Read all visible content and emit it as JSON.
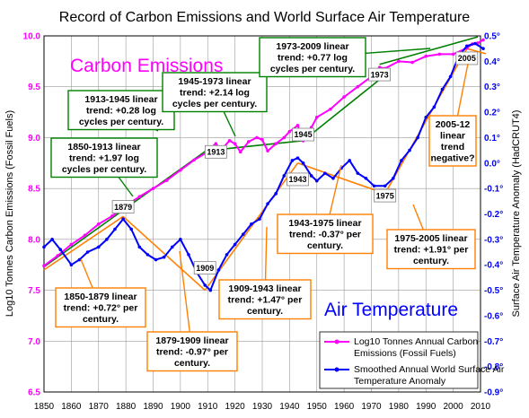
{
  "chart_data": {
    "type": "line",
    "title": "Record of Carbon Emissions and World Surface Air Temperature",
    "xlabel": "",
    "ylabel_left": "Log10 Tonnes Carbon Emissions (Fossil Fuels)",
    "ylabel_right": "Surface Air Temperature Anomaly (HadCRUT4)",
    "xlim": [
      1850,
      2010
    ],
    "ylim_left": [
      6.5,
      10.0
    ],
    "ylim_right": [
      -0.9,
      0.5
    ],
    "x_ticks": [
      "1850",
      "1860",
      "1870",
      "1880",
      "1890",
      "1900",
      "1910",
      "1920",
      "1930",
      "1940",
      "1950",
      "1960",
      "1970",
      "1980",
      "1990",
      "2000",
      "2010"
    ],
    "y_left_ticks": [
      "6.5",
      "7.0",
      "7.5",
      "8.0",
      "8.5",
      "9.0",
      "9.5",
      "10.0"
    ],
    "y_right_ticks": [
      "0.5°",
      "0.4°",
      "0.3°",
      "0.2°",
      "0.1°",
      "0.0°",
      "-0.1°",
      "-0.2°",
      "-0.3°",
      "-0.4°",
      "-0.5°",
      "-0.6°",
      "-0.7°",
      "-0.8°",
      "-0.9°"
    ],
    "grid": true,
    "series": [
      {
        "name": "Log10 Tonnes Annual Carbon Emissions (Fossil Fuels)",
        "axis": "left",
        "color": "#ff00ff",
        "x": [
          1850,
          1855,
          1860,
          1865,
          1870,
          1875,
          1880,
          1885,
          1890,
          1895,
          1900,
          1905,
          1910,
          1913,
          1915,
          1918,
          1920,
          1922,
          1925,
          1928,
          1930,
          1932,
          1935,
          1938,
          1940,
          1943,
          1945,
          1946,
          1948,
          1950,
          1955,
          1960,
          1965,
          1970,
          1973,
          1975,
          1980,
          1985,
          1990,
          1995,
          2000,
          2005,
          2007,
          2009,
          2011
        ],
        "y": [
          7.74,
          7.84,
          7.95,
          8.04,
          8.15,
          8.23,
          8.33,
          8.42,
          8.5,
          8.58,
          8.68,
          8.78,
          8.86,
          8.94,
          8.88,
          8.97,
          8.94,
          8.86,
          8.96,
          9.0,
          8.98,
          8.87,
          8.94,
          9.0,
          9.06,
          9.12,
          8.97,
          9.02,
          9.1,
          9.2,
          9.28,
          9.4,
          9.5,
          9.6,
          9.69,
          9.68,
          9.75,
          9.74,
          9.8,
          9.82,
          9.82,
          9.88,
          9.92,
          9.93,
          9.96
        ]
      },
      {
        "name": "Smoothed Annual World Surface Air Temperature Anomaly",
        "axis": "right",
        "color": "#0000ff",
        "x": [
          1850,
          1853,
          1856,
          1860,
          1863,
          1866,
          1870,
          1873,
          1876,
          1879,
          1882,
          1885,
          1888,
          1891,
          1894,
          1897,
          1900,
          1903,
          1906,
          1909,
          1911,
          1914,
          1917,
          1920,
          1923,
          1926,
          1929,
          1932,
          1935,
          1938,
          1941,
          1943,
          1945,
          1948,
          1950,
          1953,
          1956,
          1959,
          1962,
          1965,
          1968,
          1971,
          1975,
          1978,
          1981,
          1984,
          1987,
          1990,
          1993,
          1996,
          1999,
          2002,
          2005,
          2008,
          2011
        ],
        "y": [
          -0.33,
          -0.3,
          -0.34,
          -0.4,
          -0.38,
          -0.35,
          -0.33,
          -0.3,
          -0.26,
          -0.22,
          -0.26,
          -0.33,
          -0.36,
          -0.38,
          -0.37,
          -0.33,
          -0.3,
          -0.36,
          -0.43,
          -0.48,
          -0.5,
          -0.42,
          -0.36,
          -0.32,
          -0.28,
          -0.24,
          -0.22,
          -0.16,
          -0.12,
          -0.05,
          0.01,
          0.02,
          0.0,
          -0.05,
          -0.07,
          -0.04,
          -0.06,
          -0.02,
          0.01,
          -0.04,
          -0.06,
          -0.09,
          -0.09,
          -0.06,
          0.01,
          0.05,
          0.1,
          0.18,
          0.22,
          0.29,
          0.34,
          0.42,
          0.46,
          0.47,
          0.45
        ]
      }
    ],
    "series_labels": {
      "carbon": "Carbon Emissions",
      "temperature": "Air Temperature"
    },
    "legend": {
      "placement": "bottom-right",
      "items": [
        {
          "label_line1": "Log10 Tonnes Annual Carbon",
          "label_line2": "Emissions (Fossil Fuels)",
          "color": "#ff00ff"
        },
        {
          "label_line1": "Smoothed Annual World Surface Air",
          "label_line2": "Temperature Anomaly",
          "color": "#0000ff"
        }
      ]
    },
    "year_markers": [
      {
        "label": "1879",
        "x": 1879,
        "y": 8.32,
        "axis": "left"
      },
      {
        "label": "1909",
        "x": 1909,
        "y": 7.72,
        "axis": "left"
      },
      {
        "label": "1913",
        "x": 1913,
        "y": 8.86,
        "axis": "left"
      },
      {
        "label": "1943",
        "x": 1943,
        "y": 8.59,
        "axis": "left"
      },
      {
        "label": "1945",
        "x": 1945,
        "y": 9.03,
        "axis": "left"
      },
      {
        "label": "1973",
        "x": 1973,
        "y": 9.62,
        "axis": "left"
      },
      {
        "label": "1975",
        "x": 1975,
        "y": 8.43,
        "axis": "left"
      },
      {
        "label": "2005",
        "x": 2005,
        "y": 9.78,
        "axis": "left"
      }
    ],
    "trend_lines": [
      {
        "axis": "left",
        "color": "#008000",
        "x": [
          1850,
          1913
        ],
        "y": [
          7.73,
          8.94
        ]
      },
      {
        "axis": "left",
        "color": "#008000",
        "x": [
          1913,
          1945
        ],
        "y": [
          8.88,
          8.97
        ]
      },
      {
        "axis": "left",
        "color": "#008000",
        "x": [
          1945,
          1973
        ],
        "y": [
          8.97,
          9.57
        ]
      },
      {
        "axis": "left",
        "color": "#008000",
        "x": [
          1973,
          2009
        ],
        "y": [
          9.72,
          9.99
        ]
      },
      {
        "axis": "right",
        "color": "#ff8000",
        "x": [
          1850,
          1879
        ],
        "y": [
          -0.42,
          -0.21
        ]
      },
      {
        "axis": "right",
        "color": "#ff8000",
        "x": [
          1879,
          1909
        ],
        "y": [
          -0.21,
          -0.5
        ]
      },
      {
        "axis": "right",
        "color": "#ff8000",
        "x": [
          1909,
          1943
        ],
        "y": [
          -0.5,
          0.0
        ]
      },
      {
        "axis": "right",
        "color": "#ff8000",
        "x": [
          1943,
          1975
        ],
        "y": [
          0.0,
          -0.12
        ]
      },
      {
        "axis": "right",
        "color": "#ff8000",
        "x": [
          1975,
          2005
        ],
        "y": [
          -0.12,
          0.45
        ]
      },
      {
        "axis": "right",
        "color": "#ff8000",
        "x": [
          2005,
          2012
        ],
        "y": [
          0.45,
          0.43
        ]
      }
    ],
    "annotations": [
      {
        "color": "#008000",
        "lines": [
          "1850-1913 linear",
          "trend: +1.97 log",
          "cycles  per century."
        ]
      },
      {
        "color": "#008000",
        "lines": [
          "1913-1945 linear",
          "trend:  +0.28 log",
          "cycles per century."
        ]
      },
      {
        "color": "#008000",
        "lines": [
          "1945-1973 linear",
          "trend:  +2.14 log",
          "cycles  per century."
        ]
      },
      {
        "color": "#008000",
        "lines": [
          "1973-2009 linear",
          "trend: +0.77 log",
          "cycles per century."
        ]
      },
      {
        "color": "#ff8000",
        "lines": [
          "1850-1879 linear",
          "trend:  +0.72° per",
          "century."
        ]
      },
      {
        "color": "#ff8000",
        "lines": [
          "1879-1909 linear",
          "trend:  -0.97° per",
          "century."
        ]
      },
      {
        "color": "#ff8000",
        "lines": [
          "1909-1943 linear",
          "trend:  +1.47° per",
          "century."
        ]
      },
      {
        "color": "#ff8000",
        "lines": [
          "1943-1975 linear",
          "trend:  -0.37° per",
          "century."
        ]
      },
      {
        "color": "#ff8000",
        "lines": [
          "1975-2005 linear",
          "trend:  +1.91° per",
          "century."
        ]
      },
      {
        "color": "#ff8000",
        "lines": [
          "2005-12",
          "linear",
          "trend",
          "negative?"
        ]
      }
    ]
  }
}
